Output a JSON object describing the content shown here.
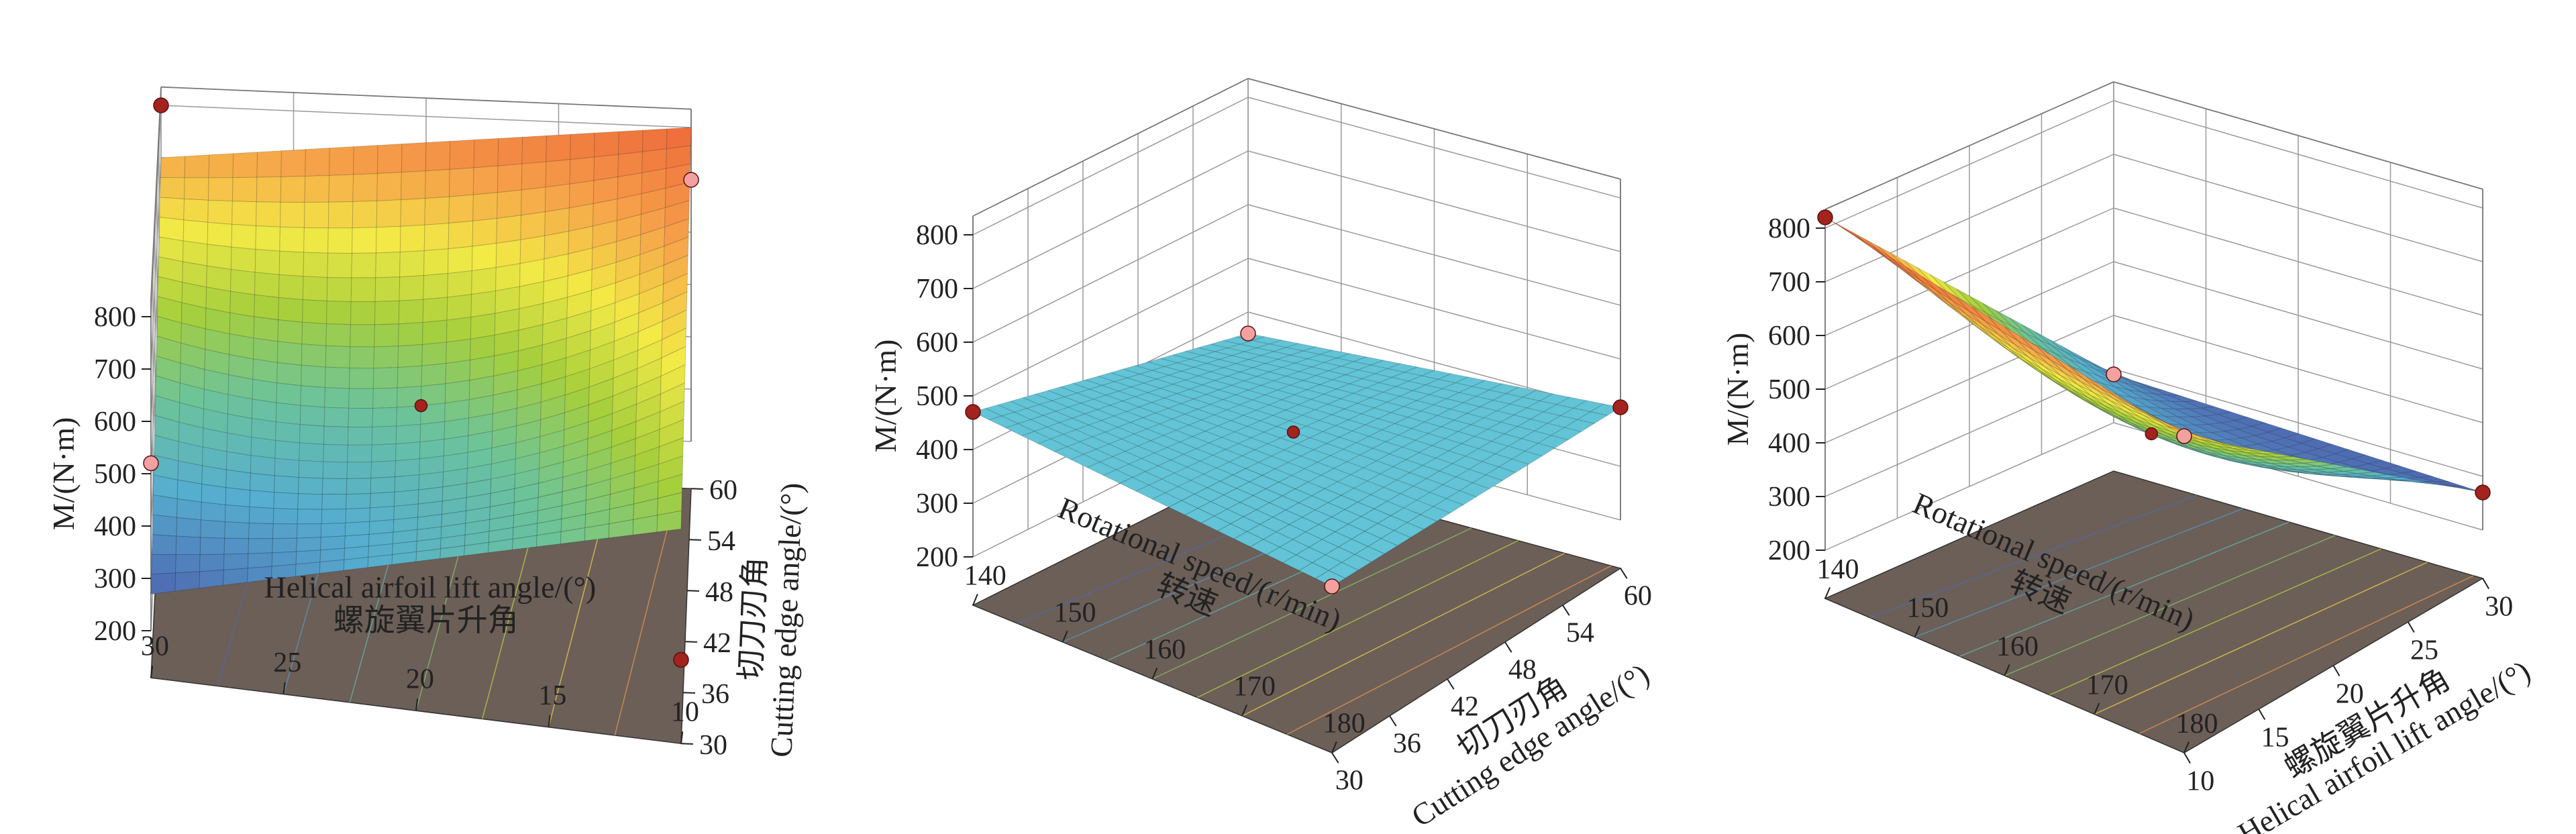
{
  "charts": [
    {
      "id": "p1",
      "type": "surface",
      "zlabel": "M/(N·m)",
      "x_axis": {
        "label_cn": "螺旋翼片升角",
        "label_en": "Helical airfoil lift angle/(°)",
        "ticks": [
          "30",
          "25",
          "20",
          "15",
          "10"
        ]
      },
      "y_axis": {
        "label_cn": "切刀刃角",
        "label_en": "Cutting edge angle/(°)",
        "ticks": [
          "30",
          "36",
          "42",
          "48",
          "54",
          "60"
        ]
      },
      "z_ticks": [
        "200",
        "300",
        "400",
        "500",
        "600",
        "700",
        "800"
      ],
      "colors": {
        "low": "#3f4fa0",
        "high": "#f26b3a",
        "floor": "#6b5f58"
      }
    },
    {
      "id": "p2",
      "type": "surface",
      "zlabel": "M/(N·m)",
      "x_axis": {
        "label_cn": "转速",
        "label_en": "Rotational speed/(r/min)",
        "ticks": [
          "140",
          "150",
          "160",
          "170",
          "180"
        ]
      },
      "y_axis": {
        "label_cn": "切刀刃角",
        "label_en": "Cutting edge angle/(°)",
        "ticks": [
          "30",
          "36",
          "42",
          "48",
          "54",
          "60"
        ]
      },
      "z_ticks": [
        "200",
        "300",
        "400",
        "500",
        "600",
        "700",
        "800"
      ],
      "colors": {
        "surface": "#62c4d6",
        "floor": "#6b5f58"
      }
    },
    {
      "id": "p3",
      "type": "surface",
      "zlabel": "M/(N·m)",
      "x_axis": {
        "label_cn": "转速",
        "label_en": "Rotational speed/(r/min)",
        "ticks": [
          "140",
          "150",
          "160",
          "170",
          "180"
        ]
      },
      "y_axis": {
        "label_cn": "螺旋翼片升角",
        "label_en": "Helical airfoil lift angle/(°)",
        "ticks": [
          "10",
          "15",
          "20",
          "25",
          "30"
        ]
      },
      "z_ticks": [
        "200",
        "300",
        "400",
        "500",
        "600",
        "700",
        "800"
      ],
      "colors": {
        "low": "#3f4fa0",
        "high": "#f26b3a",
        "floor": "#6b5f58"
      }
    }
  ],
  "chart_data": [
    {
      "type": "surface",
      "x_name": "Helical airfoil lift angle/(°)",
      "x_range": [
        10,
        30
      ],
      "y_name": "Cutting edge angle/(°)",
      "y_range": [
        30,
        60
      ],
      "z_name": "M/(N·m)",
      "z_range": [
        200,
        800
      ],
      "corner_values": [
        {
          "x": 30,
          "y": 30,
          "z": 270
        },
        {
          "x": 30,
          "y": 60,
          "z": 700
        },
        {
          "x": 10,
          "y": 60,
          "z": 800
        },
        {
          "x": 10,
          "y": 30,
          "z": 520
        }
      ],
      "design_points": [
        {
          "x": 30,
          "y": 30,
          "z": 270
        },
        {
          "x": 30,
          "y": 60,
          "z": 700
        },
        {
          "x": 10,
          "y": 60,
          "z": 800
        },
        {
          "x": 10,
          "y": 30,
          "z": 520
        },
        {
          "x": 20,
          "y": 45,
          "z": 470
        }
      ]
    },
    {
      "type": "surface",
      "x_name": "Rotational speed/(r/min)",
      "x_range": [
        140,
        180
      ],
      "y_name": "Cutting edge angle/(°)",
      "y_range": [
        30,
        60
      ],
      "z_name": "M/(N·m)",
      "z_range": [
        200,
        800
      ],
      "corner_values": [
        {
          "x": 140,
          "y": 30,
          "z": 470
        },
        {
          "x": 140,
          "y": 60,
          "z": 360
        },
        {
          "x": 180,
          "y": 60,
          "z": 410
        },
        {
          "x": 180,
          "y": 30,
          "z": 420
        }
      ],
      "design_points": [
        {
          "x": 140,
          "y": 30,
          "z": 470
        },
        {
          "x": 140,
          "y": 60,
          "z": 360
        },
        {
          "x": 180,
          "y": 60,
          "z": 410
        },
        {
          "x": 180,
          "y": 30,
          "z": 420
        },
        {
          "x": 160,
          "y": 45,
          "z": 420
        }
      ]
    },
    {
      "type": "surface",
      "x_name": "Rotational speed/(r/min)",
      "x_range": [
        140,
        180
      ],
      "y_name": "Helical airfoil lift angle/(°)",
      "y_range": [
        10,
        30
      ],
      "z_name": "M/(N·m)",
      "z_range": [
        200,
        800
      ],
      "corner_values": [
        {
          "x": 140,
          "y": 10,
          "z": 820
        },
        {
          "x": 140,
          "y": 30,
          "z": 290
        },
        {
          "x": 180,
          "y": 30,
          "z": 270
        },
        {
          "x": 180,
          "y": 10,
          "z": 700
        }
      ],
      "design_points": [
        {
          "x": 140,
          "y": 10,
          "z": 820
        },
        {
          "x": 140,
          "y": 30,
          "z": 290
        },
        {
          "x": 180,
          "y": 30,
          "z": 270
        },
        {
          "x": 180,
          "y": 10,
          "z": 700
        },
        {
          "x": 160,
          "y": 20,
          "z": 420
        }
      ]
    }
  ]
}
